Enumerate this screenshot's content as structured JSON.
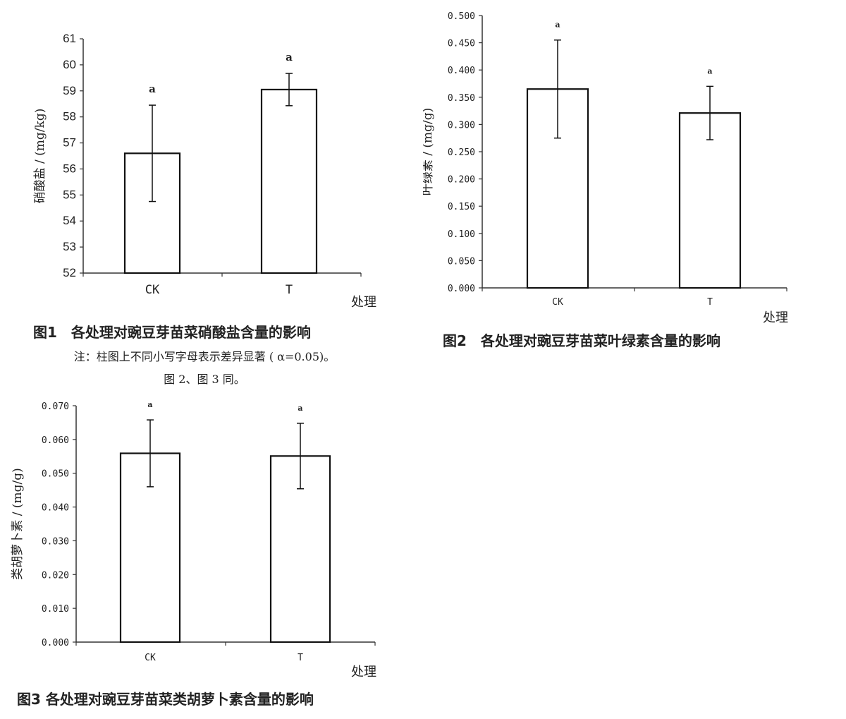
{
  "chart_data": [
    {
      "type": "bar",
      "categories": [
        "CK",
        "T"
      ],
      "values": [
        56.6,
        59.05
      ],
      "errors": [
        1.85,
        0.62
      ],
      "significance": [
        "a",
        "a"
      ],
      "ylim": [
        52,
        61
      ],
      "yticks": [
        "52",
        "53",
        "54",
        "55",
        "56",
        "57",
        "58",
        "59",
        "60",
        "61"
      ],
      "ylabel": "硝酸盐 / (mg/kg)",
      "xlabel": "处理",
      "caption": "图1　各处理对豌豆芽苗菜硝酸盐含量的影响"
    },
    {
      "type": "bar",
      "categories": [
        "CK",
        "T"
      ],
      "values": [
        0.365,
        0.321
      ],
      "errors": [
        0.09,
        0.049
      ],
      "significance": [
        "a",
        "a"
      ],
      "ylim": [
        0,
        0.5
      ],
      "yticks": [
        "0.000",
        "0.050",
        "0.100",
        "0.150",
        "0.200",
        "0.250",
        "0.300",
        "0.350",
        "0.400",
        "0.450",
        "0.500"
      ],
      "ylabel": "叶绿素 / (mg/g)",
      "xlabel": "处理",
      "caption": "图2　各处理对豌豆芽苗菜叶绿素含量的影响"
    },
    {
      "type": "bar",
      "categories": [
        "CK",
        "T"
      ],
      "values": [
        0.0559,
        0.0551
      ],
      "errors": [
        0.0099,
        0.0097
      ],
      "significance": [
        "a",
        "a"
      ],
      "ylim": [
        0,
        0.07
      ],
      "yticks": [
        "0.000",
        "0.010",
        "0.020",
        "0.030",
        "0.040",
        "0.050",
        "0.060",
        "0.070"
      ],
      "ylabel": "类胡萝卜素 / (mg/g)",
      "xlabel": "处理",
      "caption": "图3 各处理对豌豆芽苗菜类胡萝卜素含量的影响"
    }
  ],
  "note": {
    "line1": "注：柱图上不同小写字母表示差异显著 ( α=0.05)。",
    "line2": "图 2、图 3 同。"
  }
}
